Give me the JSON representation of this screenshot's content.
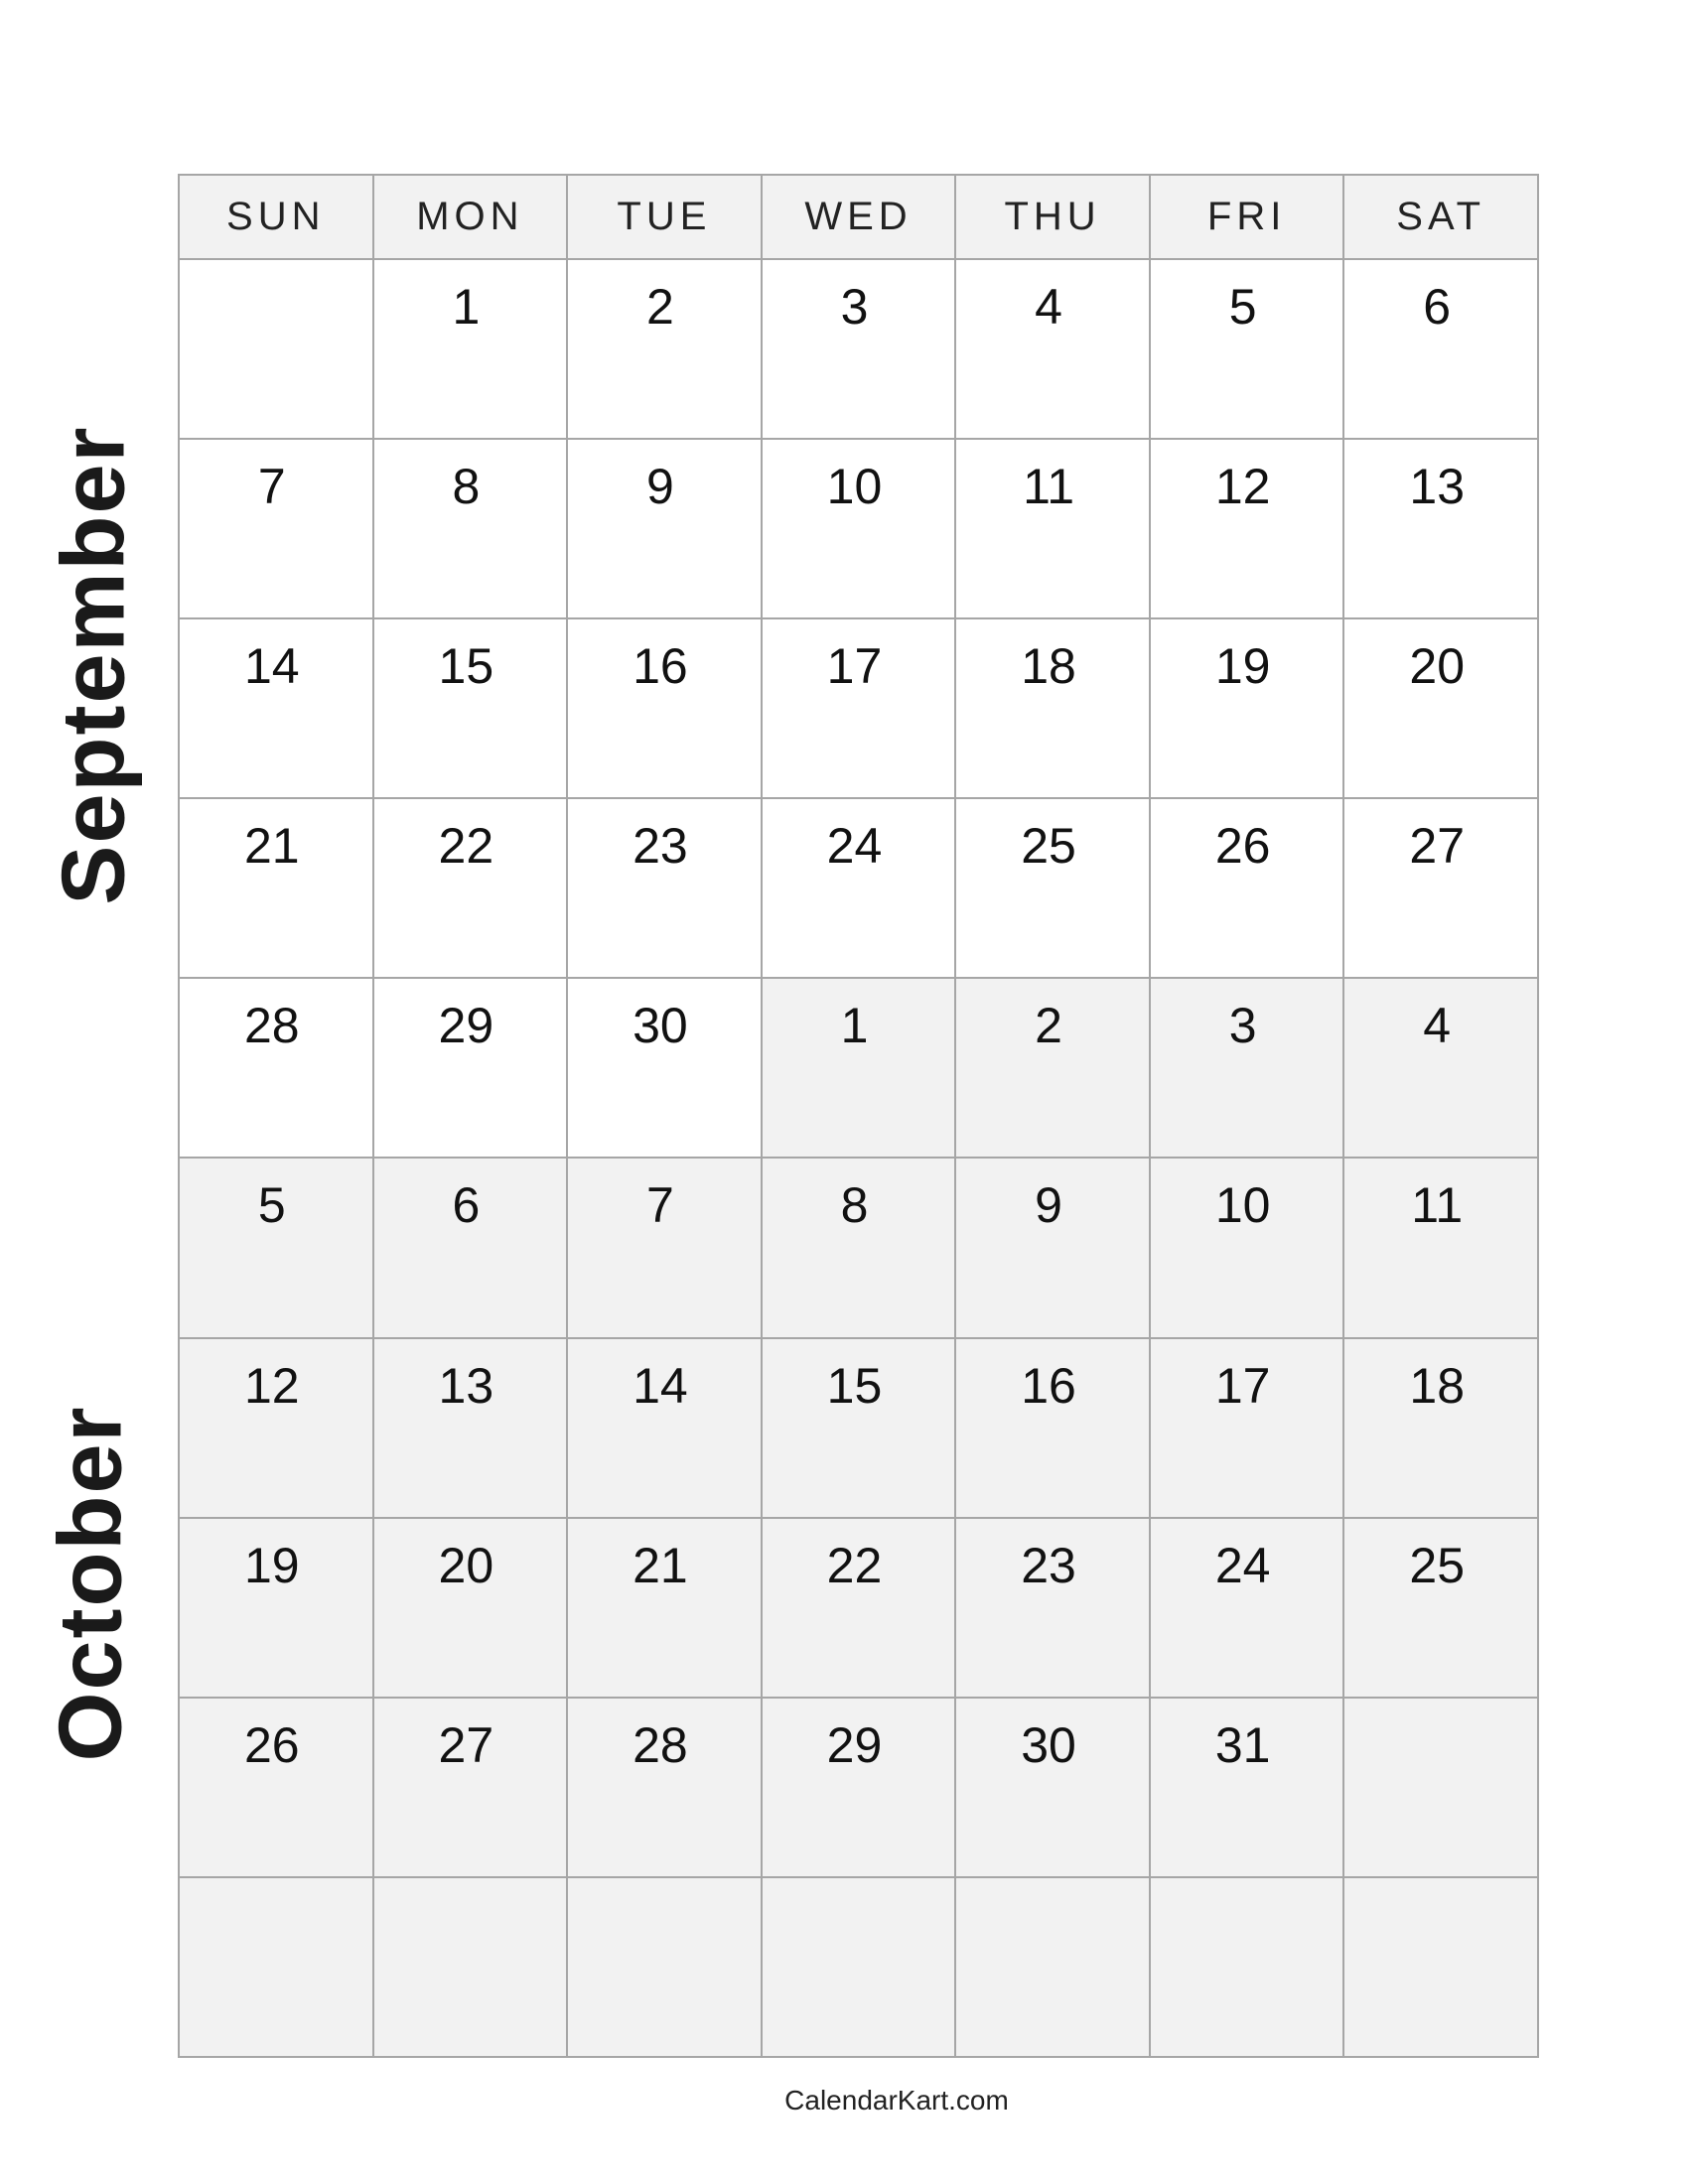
{
  "months": [
    "September",
    "October"
  ],
  "weekdays": [
    "SUN",
    "MON",
    "TUE",
    "WED",
    "THU",
    "FRI",
    "SAT"
  ],
  "colors": {
    "border": "#a6a6a6",
    "shaded": "#f2f2f2"
  },
  "weeks": [
    [
      {
        "d": "",
        "m": 0
      },
      {
        "d": "1",
        "m": 0
      },
      {
        "d": "2",
        "m": 0
      },
      {
        "d": "3",
        "m": 0
      },
      {
        "d": "4",
        "m": 0
      },
      {
        "d": "5",
        "m": 0
      },
      {
        "d": "6",
        "m": 0
      }
    ],
    [
      {
        "d": "7",
        "m": 0
      },
      {
        "d": "8",
        "m": 0
      },
      {
        "d": "9",
        "m": 0
      },
      {
        "d": "10",
        "m": 0
      },
      {
        "d": "11",
        "m": 0
      },
      {
        "d": "12",
        "m": 0
      },
      {
        "d": "13",
        "m": 0
      }
    ],
    [
      {
        "d": "14",
        "m": 0
      },
      {
        "d": "15",
        "m": 0
      },
      {
        "d": "16",
        "m": 0
      },
      {
        "d": "17",
        "m": 0
      },
      {
        "d": "18",
        "m": 0
      },
      {
        "d": "19",
        "m": 0
      },
      {
        "d": "20",
        "m": 0
      }
    ],
    [
      {
        "d": "21",
        "m": 0
      },
      {
        "d": "22",
        "m": 0
      },
      {
        "d": "23",
        "m": 0
      },
      {
        "d": "24",
        "m": 0
      },
      {
        "d": "25",
        "m": 0
      },
      {
        "d": "26",
        "m": 0
      },
      {
        "d": "27",
        "m": 0
      }
    ],
    [
      {
        "d": "28",
        "m": 0
      },
      {
        "d": "29",
        "m": 0
      },
      {
        "d": "30",
        "m": 0
      },
      {
        "d": "1",
        "m": 1
      },
      {
        "d": "2",
        "m": 1
      },
      {
        "d": "3",
        "m": 1
      },
      {
        "d": "4",
        "m": 1
      }
    ],
    [
      {
        "d": "5",
        "m": 1
      },
      {
        "d": "6",
        "m": 1
      },
      {
        "d": "7",
        "m": 1
      },
      {
        "d": "8",
        "m": 1
      },
      {
        "d": "9",
        "m": 1
      },
      {
        "d": "10",
        "m": 1
      },
      {
        "d": "11",
        "m": 1
      }
    ],
    [
      {
        "d": "12",
        "m": 1
      },
      {
        "d": "13",
        "m": 1
      },
      {
        "d": "14",
        "m": 1
      },
      {
        "d": "15",
        "m": 1
      },
      {
        "d": "16",
        "m": 1
      },
      {
        "d": "17",
        "m": 1
      },
      {
        "d": "18",
        "m": 1
      }
    ],
    [
      {
        "d": "19",
        "m": 1
      },
      {
        "d": "20",
        "m": 1
      },
      {
        "d": "21",
        "m": 1
      },
      {
        "d": "22",
        "m": 1
      },
      {
        "d": "23",
        "m": 1
      },
      {
        "d": "24",
        "m": 1
      },
      {
        "d": "25",
        "m": 1
      }
    ],
    [
      {
        "d": "26",
        "m": 1
      },
      {
        "d": "27",
        "m": 1
      },
      {
        "d": "28",
        "m": 1
      },
      {
        "d": "29",
        "m": 1
      },
      {
        "d": "30",
        "m": 1
      },
      {
        "d": "31",
        "m": 1
      },
      {
        "d": "",
        "m": 1
      }
    ],
    [
      {
        "d": "",
        "m": 1
      },
      {
        "d": "",
        "m": 1
      },
      {
        "d": "",
        "m": 1
      },
      {
        "d": "",
        "m": 1
      },
      {
        "d": "",
        "m": 1
      },
      {
        "d": "",
        "m": 1
      },
      {
        "d": "",
        "m": 1
      }
    ]
  ],
  "footer": "CalendarKart.com"
}
